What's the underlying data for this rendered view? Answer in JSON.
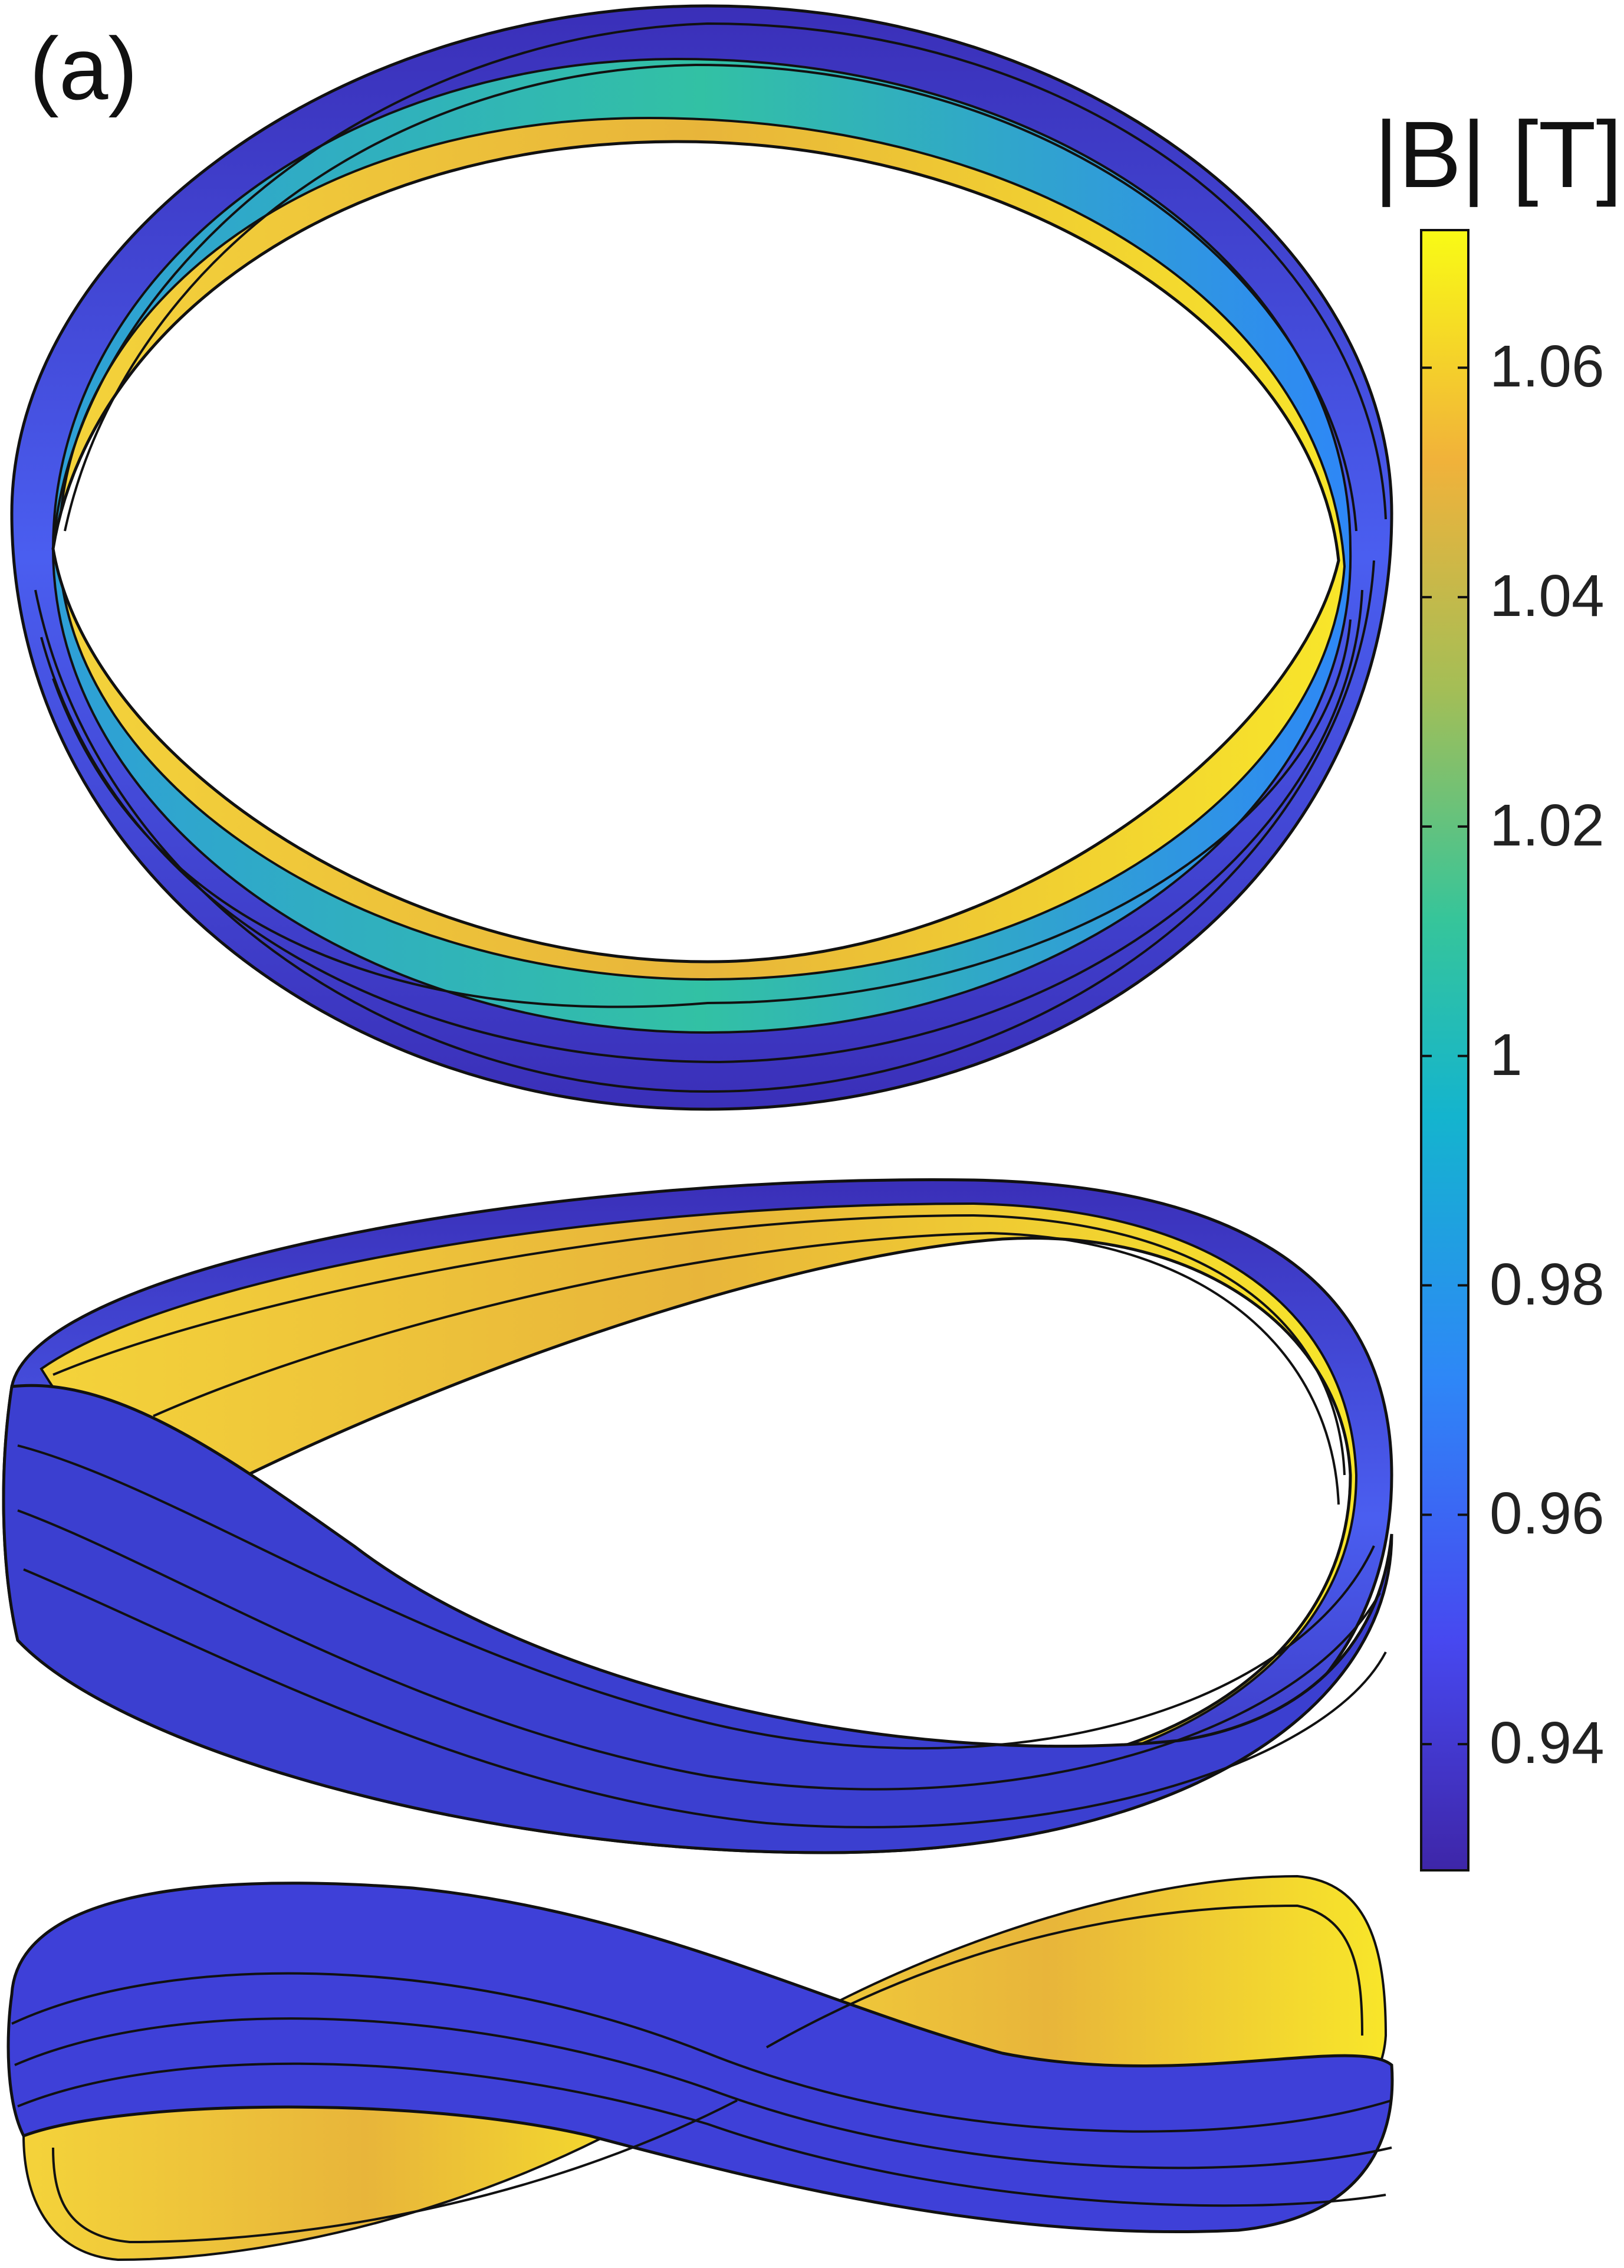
{
  "panel_label": "(a)",
  "colorbar": {
    "title": "|B| [T]",
    "ticks": [
      "1.06",
      "1.04",
      "1.02",
      "1",
      "0.98",
      "0.96",
      "0.94"
    ],
    "tick_values": [
      1.06,
      1.04,
      1.02,
      1.0,
      0.98,
      0.96,
      0.94
    ],
    "range": [
      0.929,
      1.072
    ],
    "colormap": [
      "#3e26a8",
      "#4748f0",
      "#2e87f7",
      "#14b4ce",
      "#36c59a",
      "#a4be56",
      "#f1b23a",
      "#f9fb15"
    ]
  },
  "views": [
    "top-view",
    "oblique-view",
    "side-view"
  ]
}
